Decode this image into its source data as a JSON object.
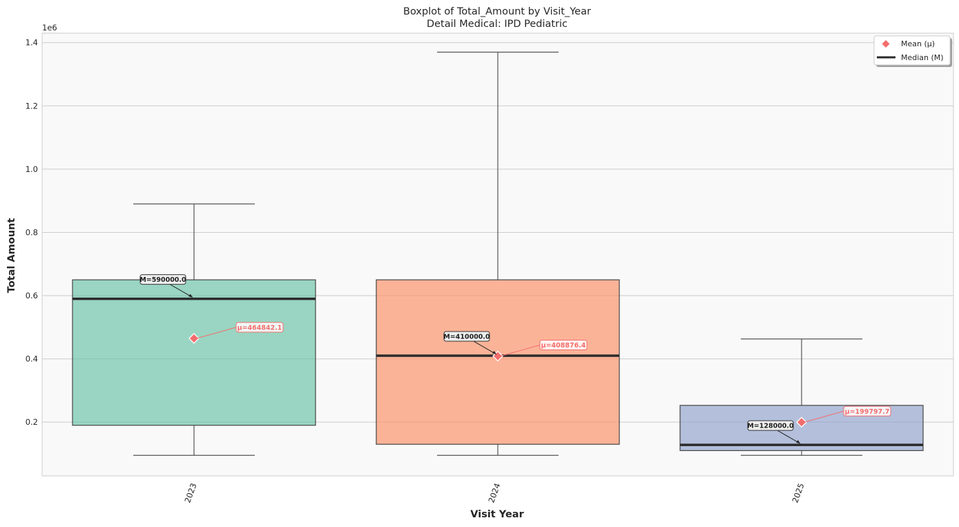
{
  "chart_data": {
    "type": "box",
    "title": "Boxplot of Total_Amount by Visit_Year",
    "subtitle": "Detail Medical: IPD Pediatric",
    "xlabel": "Visit Year",
    "ylabel": "Total Amount",
    "y_offset_label": "1e6",
    "ylim": [
      30000,
      1430000
    ],
    "y_ticks": [
      200000,
      400000,
      600000,
      800000,
      1000000,
      1200000,
      1400000
    ],
    "y_tick_labels": [
      "0.2",
      "0.4",
      "0.6",
      "0.8",
      "1.0",
      "1.2",
      "1.4"
    ],
    "grid": true,
    "legend_position": "top-right",
    "categories": [
      "2023",
      "2024",
      "2025"
    ],
    "boxes": [
      {
        "category": "2023",
        "whisker_low": 95000,
        "q1": 190000,
        "median": 590000,
        "q3": 650000,
        "whisker_high": 890000,
        "mean": 464842.1,
        "color": "#66c2a5",
        "median_label": "M=590000.0",
        "mean_label": "μ=464842.1"
      },
      {
        "category": "2024",
        "whisker_low": 95000,
        "q1": 130000,
        "median": 410000,
        "q3": 650000,
        "whisker_high": 1370000,
        "mean": 408876.4,
        "color": "#fc8d62",
        "median_label": "M=410000.0",
        "mean_label": "μ=408876.4"
      },
      {
        "category": "2025",
        "whisker_low": 95000,
        "q1": 110000,
        "median": 128000,
        "q3": 253000,
        "whisker_high": 463000,
        "mean": 199797.7,
        "color": "#8da0cb",
        "median_label": "M=128000.0",
        "mean_label": "μ=199797.7"
      }
    ],
    "legend": [
      {
        "label": "Mean (μ)",
        "marker": "diamond",
        "color": "#f46d6d"
      },
      {
        "label": "Median (M)",
        "marker": "line",
        "color": "#2b2b2b"
      }
    ],
    "colors": {
      "mean": "#f46d6d",
      "median": "#2b2b2b",
      "plot_bg": "#f9f9f9",
      "grid": "#cccccc"
    }
  }
}
